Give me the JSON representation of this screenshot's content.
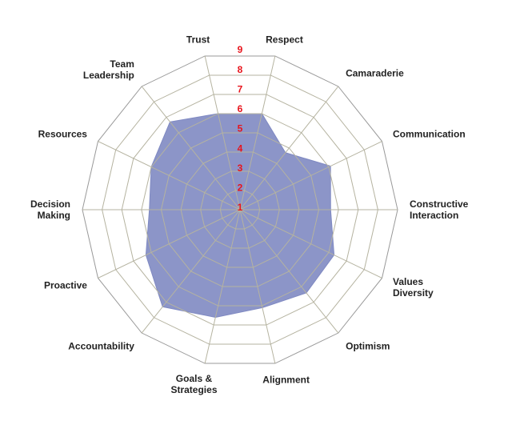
{
  "chart_data": {
    "type": "radar",
    "categories": [
      "Trust",
      "Respect",
      "Camaraderie",
      "Communication",
      "Constructive\nInteraction",
      "Values\nDiversity",
      "Optimism",
      "Alignment",
      "Goals &\nStrategies",
      "Accountability",
      "Proactive",
      "Decision\nMaking",
      "Resources",
      "Team\nLeadership"
    ],
    "values": [
      6,
      6,
      4.7,
      6.1,
      5.6,
      6.3,
      6.4,
      6.1,
      6.6,
      7.3,
      6.3,
      5.6,
      6,
      6.7
    ],
    "color": "#7f89c2",
    "rlim": [
      1,
      9
    ],
    "rticks": [
      1,
      2,
      3,
      4,
      5,
      6,
      7,
      8,
      9
    ],
    "grid": true
  }
}
